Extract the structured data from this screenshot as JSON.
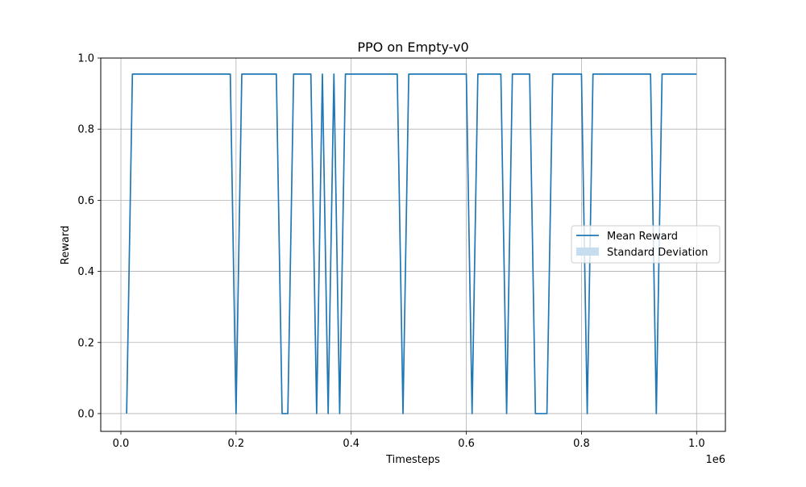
{
  "chart_data": {
    "type": "line",
    "title": "PPO on Empty-v0",
    "xlabel": "Timesteps",
    "ylabel": "Reward",
    "x_offset_label": "1e6",
    "xlim": [
      -0.035,
      1.05
    ],
    "ylim": [
      -0.05,
      1.0
    ],
    "x_ticks": [
      0.0,
      0.2,
      0.4,
      0.6,
      0.8,
      1.0
    ],
    "x_tick_labels": [
      "0.0",
      "0.2",
      "0.4",
      "0.6",
      "0.8",
      "1.0"
    ],
    "y_ticks": [
      0.0,
      0.2,
      0.4,
      0.6,
      0.8,
      1.0
    ],
    "y_tick_labels": [
      "0.0",
      "0.2",
      "0.4",
      "0.6",
      "0.8",
      "1.0"
    ],
    "grid": true,
    "legend_position": "center-right",
    "legend": [
      "Mean Reward",
      "Standard Deviation"
    ],
    "colors": {
      "line": "#1f77b4",
      "band": "#c6dcef",
      "grid": "#b0b0b0"
    },
    "series": [
      {
        "name": "Mean Reward",
        "x": [
          0.01,
          0.02,
          0.19,
          0.2,
          0.21,
          0.27,
          0.28,
          0.29,
          0.3,
          0.33,
          0.34,
          0.35,
          0.36,
          0.37,
          0.38,
          0.39,
          0.48,
          0.49,
          0.5,
          0.6,
          0.61,
          0.62,
          0.66,
          0.67,
          0.68,
          0.71,
          0.72,
          0.74,
          0.75,
          0.8,
          0.81,
          0.82,
          0.92,
          0.93,
          0.94,
          1.0
        ],
        "y": [
          0.0,
          0.955,
          0.955,
          0.0,
          0.955,
          0.955,
          0.0,
          0.0,
          0.955,
          0.955,
          0.0,
          0.955,
          0.0,
          0.955,
          0.0,
          0.955,
          0.955,
          0.0,
          0.955,
          0.955,
          0.0,
          0.955,
          0.955,
          0.0,
          0.955,
          0.955,
          0.0,
          0.0,
          0.955,
          0.955,
          0.0,
          0.955,
          0.955,
          0.0,
          0.955,
          0.955
        ]
      }
    ]
  }
}
